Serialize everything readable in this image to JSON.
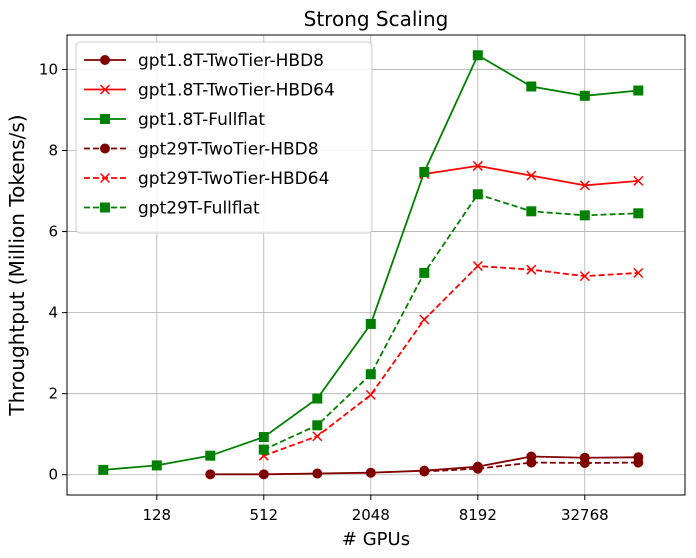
{
  "chart_data": {
    "type": "line",
    "title": "Strong Scaling",
    "xlabel": "# GPUs",
    "ylabel": "Throughtput (Million Tokens/s)",
    "x_scale": "log2",
    "xlim": [
      40,
      120000
    ],
    "ylim": [
      -0.5,
      10.85
    ],
    "x_ticks": [
      128,
      512,
      2048,
      8192,
      32768
    ],
    "x_tick_labels": [
      "128",
      "512",
      "2048",
      "8192",
      "32768"
    ],
    "y_ticks": [
      0,
      2,
      4,
      6,
      8,
      10
    ],
    "y_tick_labels": [
      "0",
      "2",
      "4",
      "6",
      "8",
      "10"
    ],
    "grid": true,
    "legend_position": "top-left",
    "series": [
      {
        "name": "gpt1.8T-TwoTier-HBD8",
        "color": "#800000",
        "linestyle": "solid",
        "marker": "circle",
        "x": [
          256,
          512,
          1024,
          2048,
          4096,
          8192,
          16384,
          32768,
          65536
        ],
        "y": [
          0.01,
          0.01,
          0.03,
          0.05,
          0.1,
          0.2,
          0.45,
          0.42,
          0.43
        ]
      },
      {
        "name": "gpt1.8T-TwoTier-HBD64",
        "color": "#ff0000",
        "linestyle": "solid",
        "marker": "x",
        "x": [
          4096,
          8192,
          16384,
          32768,
          65536
        ],
        "y": [
          7.42,
          7.62,
          7.38,
          7.14,
          7.25
        ]
      },
      {
        "name": "gpt1.8T-Fullflat",
        "color": "#008000",
        "linestyle": "solid",
        "marker": "square",
        "x": [
          64,
          128,
          256,
          512,
          1024,
          2048,
          4096,
          8192,
          16384,
          32768,
          65536
        ],
        "y": [
          0.12,
          0.23,
          0.47,
          0.93,
          1.88,
          3.72,
          7.47,
          10.35,
          9.58,
          9.35,
          9.48
        ]
      },
      {
        "name": "gpt29T-TwoTier-HBD8",
        "color": "#800000",
        "linestyle": "dashed",
        "marker": "circle",
        "x": [
          4096,
          8192,
          16384,
          32768,
          65536
        ],
        "y": [
          0.08,
          0.15,
          0.3,
          0.29,
          0.3
        ]
      },
      {
        "name": "gpt29T-TwoTier-HBD64",
        "color": "#ff0000",
        "linestyle": "dashed",
        "marker": "x",
        "x": [
          512,
          1024,
          2048,
          4096,
          8192,
          16384,
          32768,
          65536
        ],
        "y": [
          0.47,
          0.95,
          1.97,
          3.83,
          5.15,
          5.06,
          4.9,
          4.98
        ]
      },
      {
        "name": "gpt29T-Fullflat",
        "color": "#008000",
        "linestyle": "dashed",
        "marker": "square",
        "x": [
          512,
          1024,
          2048,
          4096,
          8192,
          16384,
          32768,
          65536
        ],
        "y": [
          0.62,
          1.22,
          2.48,
          4.98,
          6.92,
          6.5,
          6.4,
          6.45
        ]
      }
    ]
  }
}
